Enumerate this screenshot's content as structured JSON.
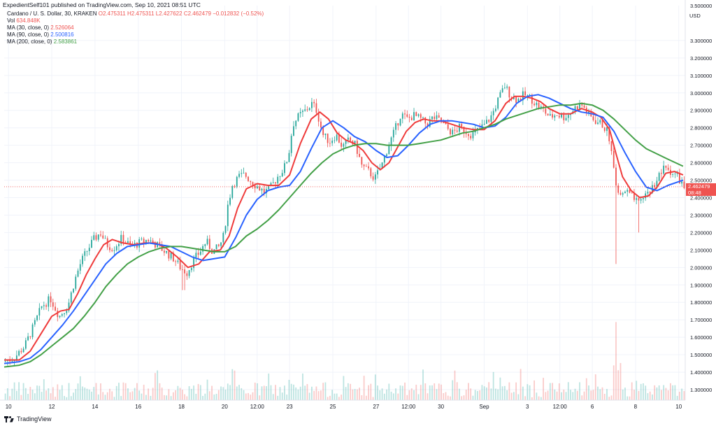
{
  "header": {
    "published": "ExpedientSelf101 published on TradingView.com, Sep 10, 2021 08:51 UTC"
  },
  "legend": {
    "symbol_line": "Cardano / U. S. Dollar, 30, KRAKEN",
    "open": "O2.475311",
    "high": "H2.475311",
    "low": "L2.427622",
    "close": "C2.462479",
    "change": "−0.012832 (−0.52%)",
    "vol_label": "Vol",
    "vol_value": "634.848K",
    "ma30_label": "MA (30, close, 0)",
    "ma30_value": "2.526064",
    "ma90_label": "MA (90, close, 0)",
    "ma90_value": "2.500816",
    "ma200_label": "MA (200, close, 0)",
    "ma200_value": "2.583861"
  },
  "price_tag": {
    "price": "2.462479",
    "time": "08:48"
  },
  "footer": {
    "brand": "TradingView"
  },
  "colors": {
    "up": "#26a69a",
    "down": "#ef5350",
    "ma30": "#ef3b3b",
    "ma90": "#2962ff",
    "ma200": "#43a047",
    "grid": "#f0f3fa",
    "axis_text": "#131722"
  },
  "chart_data": {
    "type": "candlestick",
    "title": "Cardano / U. S. Dollar, 30, KRAKEN",
    "y_axis": {
      "unit": "USD",
      "range": [
        1.24,
        3.5
      ],
      "ticks": [
        "3.500000",
        "3.300000",
        "3.200000",
        "3.100000",
        "3.000000",
        "2.900000",
        "2.800000",
        "2.700000",
        "2.600000",
        "2.500000",
        "2.400000",
        "2.300000",
        "2.200000",
        "2.100000",
        "2.000000",
        "1.900000",
        "1.800000",
        "1.700000",
        "1.600000",
        "1.500000",
        "1.400000",
        "1.300000"
      ]
    },
    "x_axis": {
      "ticks": [
        {
          "label": "10",
          "t": 0.0
        },
        {
          "label": "12",
          "t": 2.0
        },
        {
          "label": "14",
          "t": 4.0
        },
        {
          "label": "16",
          "t": 6.0
        },
        {
          "label": "18",
          "t": 8.0
        },
        {
          "label": "20",
          "t": 10.0
        },
        {
          "label": "12:00",
          "t": 11.5
        },
        {
          "label": "23",
          "t": 13.0
        },
        {
          "label": "25",
          "t": 15.0
        },
        {
          "label": "27",
          "t": 17.0
        },
        {
          "label": "12:00",
          "t": 18.5
        },
        {
          "label": "30",
          "t": 20.0
        },
        {
          "label": "Sep",
          "t": 22.0
        },
        {
          "label": "3",
          "t": 24.0
        },
        {
          "label": "12:00",
          "t": 25.5
        },
        {
          "label": "6",
          "t": 27.0
        },
        {
          "label": "8",
          "t": 29.0
        },
        {
          "label": "10",
          "t": 31.0
        }
      ],
      "t_range": [
        -0.2,
        31.3
      ]
    },
    "last_price": 2.462479,
    "price_path": [
      [
        -0.2,
        1.46
      ],
      [
        0.3,
        1.48
      ],
      [
        0.8,
        1.55
      ],
      [
        1.2,
        1.66
      ],
      [
        1.6,
        1.78
      ],
      [
        2.0,
        1.82
      ],
      [
        2.4,
        1.72
      ],
      [
        2.8,
        1.78
      ],
      [
        3.1,
        1.92
      ],
      [
        3.4,
        2.03
      ],
      [
        3.7,
        2.1
      ],
      [
        4.0,
        2.16
      ],
      [
        4.3,
        2.2
      ],
      [
        4.6,
        2.13
      ],
      [
        4.9,
        2.11
      ],
      [
        5.3,
        2.17
      ],
      [
        5.7,
        2.12
      ],
      [
        6.1,
        2.14
      ],
      [
        6.5,
        2.16
      ],
      [
        6.9,
        2.13
      ],
      [
        7.3,
        2.09
      ],
      [
        7.7,
        2.05
      ],
      [
        8.0,
        2.0
      ],
      [
        8.3,
        1.97
      ],
      [
        8.6,
        2.04
      ],
      [
        8.9,
        2.09
      ],
      [
        9.2,
        2.15
      ],
      [
        9.5,
        2.09
      ],
      [
        9.8,
        2.12
      ],
      [
        10.0,
        2.18
      ],
      [
        10.2,
        2.36
      ],
      [
        10.4,
        2.47
      ],
      [
        10.7,
        2.52
      ],
      [
        11.0,
        2.53
      ],
      [
        11.3,
        2.49
      ],
      [
        11.6,
        2.46
      ],
      [
        11.9,
        2.43
      ],
      [
        12.2,
        2.46
      ],
      [
        12.5,
        2.52
      ],
      [
        12.8,
        2.57
      ],
      [
        13.0,
        2.64
      ],
      [
        13.2,
        2.82
      ],
      [
        13.5,
        2.87
      ],
      [
        13.8,
        2.9
      ],
      [
        14.1,
        2.94
      ],
      [
        14.3,
        2.9
      ],
      [
        14.6,
        2.76
      ],
      [
        14.9,
        2.72
      ],
      [
        15.2,
        2.76
      ],
      [
        15.5,
        2.69
      ],
      [
        15.8,
        2.73
      ],
      [
        16.1,
        2.7
      ],
      [
        16.4,
        2.58
      ],
      [
        16.7,
        2.55
      ],
      [
        17.0,
        2.51
      ],
      [
        17.3,
        2.58
      ],
      [
        17.6,
        2.69
      ],
      [
        17.9,
        2.78
      ],
      [
        18.2,
        2.88
      ],
      [
        18.5,
        2.85
      ],
      [
        18.8,
        2.87
      ],
      [
        19.1,
        2.85
      ],
      [
        19.4,
        2.82
      ],
      [
        19.7,
        2.86
      ],
      [
        20.0,
        2.84
      ],
      [
        20.3,
        2.8
      ],
      [
        20.6,
        2.77
      ],
      [
        20.9,
        2.8
      ],
      [
        21.2,
        2.78
      ],
      [
        21.5,
        2.76
      ],
      [
        21.8,
        2.79
      ],
      [
        22.1,
        2.82
      ],
      [
        22.4,
        2.87
      ],
      [
        22.7,
        2.96
      ],
      [
        23.0,
        3.04
      ],
      [
        23.3,
        2.98
      ],
      [
        23.6,
        2.96
      ],
      [
        23.9,
        2.99
      ],
      [
        24.2,
        2.97
      ],
      [
        24.5,
        2.93
      ],
      [
        24.8,
        2.9
      ],
      [
        25.1,
        2.86
      ],
      [
        25.4,
        2.88
      ],
      [
        25.7,
        2.86
      ],
      [
        26.0,
        2.88
      ],
      [
        26.3,
        2.92
      ],
      [
        26.6,
        2.93
      ],
      [
        26.9,
        2.87
      ],
      [
        27.2,
        2.84
      ],
      [
        27.5,
        2.82
      ],
      [
        27.8,
        2.77
      ],
      [
        28.0,
        2.6
      ],
      [
        28.2,
        2.45
      ],
      [
        28.35,
        2.4
      ],
      [
        28.6,
        2.44
      ],
      [
        28.9,
        2.4
      ],
      [
        29.2,
        2.36
      ],
      [
        29.5,
        2.42
      ],
      [
        29.8,
        2.45
      ],
      [
        30.1,
        2.52
      ],
      [
        30.4,
        2.57
      ],
      [
        30.7,
        2.55
      ],
      [
        31.0,
        2.52
      ],
      [
        31.3,
        2.46
      ]
    ],
    "series": [
      {
        "name": "MA (30, close, 0)",
        "last": 2.526064,
        "values": [
          [
            -0.2,
            1.47
          ],
          [
            0.5,
            1.47
          ],
          [
            1.0,
            1.52
          ],
          [
            1.5,
            1.62
          ],
          [
            2.0,
            1.72
          ],
          [
            2.4,
            1.75
          ],
          [
            2.8,
            1.76
          ],
          [
            3.2,
            1.85
          ],
          [
            3.6,
            1.96
          ],
          [
            4.0,
            2.05
          ],
          [
            4.4,
            2.13
          ],
          [
            4.8,
            2.16
          ],
          [
            5.3,
            2.14
          ],
          [
            5.8,
            2.13
          ],
          [
            6.3,
            2.14
          ],
          [
            6.8,
            2.14
          ],
          [
            7.3,
            2.11
          ],
          [
            7.8,
            2.06
          ],
          [
            8.3,
            2.0
          ],
          [
            8.8,
            2.02
          ],
          [
            9.3,
            2.09
          ],
          [
            9.8,
            2.1
          ],
          [
            10.2,
            2.18
          ],
          [
            10.6,
            2.34
          ],
          [
            11.0,
            2.45
          ],
          [
            11.5,
            2.48
          ],
          [
            12.0,
            2.47
          ],
          [
            12.5,
            2.47
          ],
          [
            13.0,
            2.53
          ],
          [
            13.5,
            2.71
          ],
          [
            14.0,
            2.85
          ],
          [
            14.4,
            2.89
          ],
          [
            14.8,
            2.85
          ],
          [
            15.2,
            2.77
          ],
          [
            15.6,
            2.73
          ],
          [
            16.0,
            2.71
          ],
          [
            16.4,
            2.67
          ],
          [
            16.8,
            2.6
          ],
          [
            17.2,
            2.56
          ],
          [
            17.6,
            2.6
          ],
          [
            18.0,
            2.69
          ],
          [
            18.4,
            2.78
          ],
          [
            18.8,
            2.83
          ],
          [
            19.2,
            2.85
          ],
          [
            19.6,
            2.84
          ],
          [
            20.0,
            2.84
          ],
          [
            20.5,
            2.82
          ],
          [
            21.0,
            2.8
          ],
          [
            21.5,
            2.79
          ],
          [
            22.0,
            2.79
          ],
          [
            22.5,
            2.84
          ],
          [
            23.0,
            2.94
          ],
          [
            23.4,
            2.98
          ],
          [
            23.8,
            2.98
          ],
          [
            24.2,
            2.97
          ],
          [
            24.6,
            2.95
          ],
          [
            25.0,
            2.91
          ],
          [
            25.5,
            2.88
          ],
          [
            26.0,
            2.88
          ],
          [
            26.5,
            2.91
          ],
          [
            27.0,
            2.89
          ],
          [
            27.4,
            2.86
          ],
          [
            27.8,
            2.79
          ],
          [
            28.1,
            2.65
          ],
          [
            28.4,
            2.52
          ],
          [
            28.8,
            2.44
          ],
          [
            29.2,
            2.4
          ],
          [
            29.6,
            2.41
          ],
          [
            30.0,
            2.46
          ],
          [
            30.4,
            2.54
          ],
          [
            30.8,
            2.55
          ],
          [
            31.2,
            2.53
          ]
        ]
      },
      {
        "name": "MA (90, close, 0)",
        "last": 2.500816,
        "values": [
          [
            -0.2,
            1.45
          ],
          [
            0.5,
            1.46
          ],
          [
            1.0,
            1.48
          ],
          [
            1.5,
            1.53
          ],
          [
            2.0,
            1.6
          ],
          [
            2.5,
            1.67
          ],
          [
            3.0,
            1.75
          ],
          [
            3.5,
            1.84
          ],
          [
            4.0,
            1.93
          ],
          [
            4.5,
            2.02
          ],
          [
            5.0,
            2.08
          ],
          [
            5.5,
            2.12
          ],
          [
            6.0,
            2.13
          ],
          [
            6.5,
            2.14
          ],
          [
            7.0,
            2.13
          ],
          [
            7.5,
            2.12
          ],
          [
            8.0,
            2.09
          ],
          [
            8.5,
            2.06
          ],
          [
            9.0,
            2.04
          ],
          [
            9.5,
            2.05
          ],
          [
            10.0,
            2.06
          ],
          [
            10.5,
            2.17
          ],
          [
            11.0,
            2.3
          ],
          [
            11.5,
            2.39
          ],
          [
            12.0,
            2.44
          ],
          [
            12.5,
            2.46
          ],
          [
            13.0,
            2.47
          ],
          [
            13.5,
            2.55
          ],
          [
            14.0,
            2.68
          ],
          [
            14.5,
            2.8
          ],
          [
            15.0,
            2.84
          ],
          [
            15.5,
            2.8
          ],
          [
            16.0,
            2.75
          ],
          [
            16.5,
            2.72
          ],
          [
            17.0,
            2.67
          ],
          [
            17.5,
            2.63
          ],
          [
            18.0,
            2.64
          ],
          [
            18.5,
            2.7
          ],
          [
            19.0,
            2.77
          ],
          [
            19.5,
            2.82
          ],
          [
            20.0,
            2.84
          ],
          [
            20.5,
            2.84
          ],
          [
            21.0,
            2.83
          ],
          [
            21.5,
            2.82
          ],
          [
            22.0,
            2.8
          ],
          [
            22.5,
            2.81
          ],
          [
            23.0,
            2.86
          ],
          [
            23.5,
            2.94
          ],
          [
            24.0,
            2.98
          ],
          [
            24.5,
            2.99
          ],
          [
            25.0,
            2.97
          ],
          [
            25.5,
            2.94
          ],
          [
            26.0,
            2.91
          ],
          [
            26.5,
            2.89
          ],
          [
            27.0,
            2.88
          ],
          [
            27.5,
            2.86
          ],
          [
            28.0,
            2.78
          ],
          [
            28.5,
            2.66
          ],
          [
            29.0,
            2.55
          ],
          [
            29.5,
            2.46
          ],
          [
            30.0,
            2.44
          ],
          [
            30.5,
            2.47
          ],
          [
            31.2,
            2.5
          ]
        ]
      },
      {
        "name": "MA (200, close, 0)",
        "last": 2.583861,
        "values": [
          [
            -0.2,
            1.43
          ],
          [
            0.5,
            1.44
          ],
          [
            1.0,
            1.46
          ],
          [
            1.5,
            1.5
          ],
          [
            2.0,
            1.55
          ],
          [
            2.5,
            1.6
          ],
          [
            3.0,
            1.65
          ],
          [
            3.5,
            1.72
          ],
          [
            4.0,
            1.8
          ],
          [
            4.5,
            1.89
          ],
          [
            5.0,
            1.96
          ],
          [
            5.5,
            2.02
          ],
          [
            6.0,
            2.06
          ],
          [
            6.5,
            2.09
          ],
          [
            7.0,
            2.11
          ],
          [
            7.5,
            2.12
          ],
          [
            8.0,
            2.12
          ],
          [
            8.5,
            2.11
          ],
          [
            9.0,
            2.1
          ],
          [
            9.5,
            2.09
          ],
          [
            10.0,
            2.09
          ],
          [
            10.5,
            2.12
          ],
          [
            11.0,
            2.18
          ],
          [
            11.5,
            2.22
          ],
          [
            12.0,
            2.27
          ],
          [
            12.5,
            2.33
          ],
          [
            13.0,
            2.4
          ],
          [
            13.5,
            2.47
          ],
          [
            14.0,
            2.54
          ],
          [
            14.5,
            2.6
          ],
          [
            15.0,
            2.65
          ],
          [
            15.5,
            2.68
          ],
          [
            16.0,
            2.7
          ],
          [
            16.5,
            2.71
          ],
          [
            17.0,
            2.71
          ],
          [
            17.5,
            2.7
          ],
          [
            18.0,
            2.7
          ],
          [
            18.5,
            2.7
          ],
          [
            19.0,
            2.71
          ],
          [
            19.5,
            2.72
          ],
          [
            20.0,
            2.73
          ],
          [
            20.5,
            2.75
          ],
          [
            21.0,
            2.77
          ],
          [
            21.5,
            2.78
          ],
          [
            22.0,
            2.8
          ],
          [
            22.5,
            2.82
          ],
          [
            23.0,
            2.85
          ],
          [
            23.5,
            2.87
          ],
          [
            24.0,
            2.89
          ],
          [
            24.5,
            2.91
          ],
          [
            25.0,
            2.92
          ],
          [
            25.5,
            2.93
          ],
          [
            26.0,
            2.93
          ],
          [
            26.5,
            2.94
          ],
          [
            27.0,
            2.93
          ],
          [
            27.5,
            2.9
          ],
          [
            28.0,
            2.85
          ],
          [
            28.5,
            2.79
          ],
          [
            29.0,
            2.73
          ],
          [
            29.5,
            2.68
          ],
          [
            30.0,
            2.65
          ],
          [
            30.5,
            2.62
          ],
          [
            31.2,
            2.58
          ]
        ]
      }
    ],
    "volume": {
      "label": "Vol",
      "last": "634.848K"
    }
  }
}
